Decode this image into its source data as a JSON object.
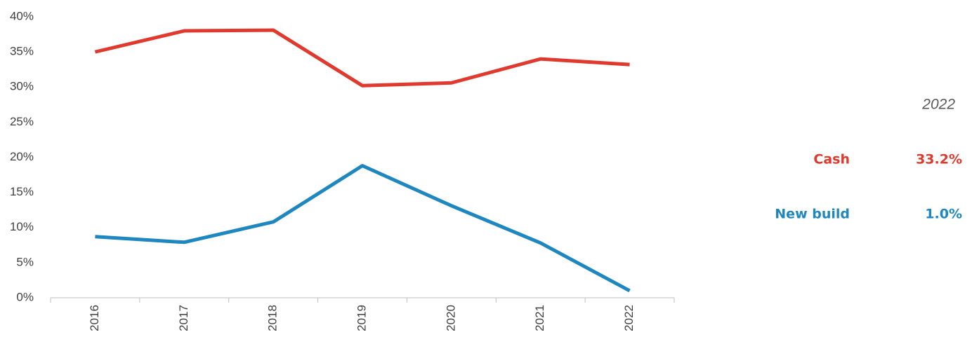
{
  "chart_data": {
    "type": "line",
    "categories": [
      "2016",
      "2017",
      "2018",
      "2019",
      "2020",
      "2021",
      "2022"
    ],
    "series": [
      {
        "name": "Cash",
        "color": "#e03a2f",
        "values": [
          35.0,
          38.0,
          38.1,
          30.2,
          30.6,
          34.0,
          33.2
        ],
        "latest_label": "33.2%"
      },
      {
        "name": "New build",
        "color": "#1f87c0",
        "values": [
          8.7,
          7.9,
          10.8,
          18.8,
          13.1,
          7.8,
          1.0
        ],
        "latest_label": "1.0%"
      }
    ],
    "ylim": [
      0,
      40
    ],
    "yticks": [
      {
        "value": 0,
        "label": "0%"
      },
      {
        "value": 5,
        "label": "5%"
      },
      {
        "value": 10,
        "label": "10%"
      },
      {
        "value": 15,
        "label": "15%"
      },
      {
        "value": 20,
        "label": "20%"
      },
      {
        "value": 25,
        "label": "25%"
      },
      {
        "value": 30,
        "label": "30%"
      },
      {
        "value": 35,
        "label": "35%"
      },
      {
        "value": 40,
        "label": "40%"
      }
    ],
    "grid": false
  }
}
